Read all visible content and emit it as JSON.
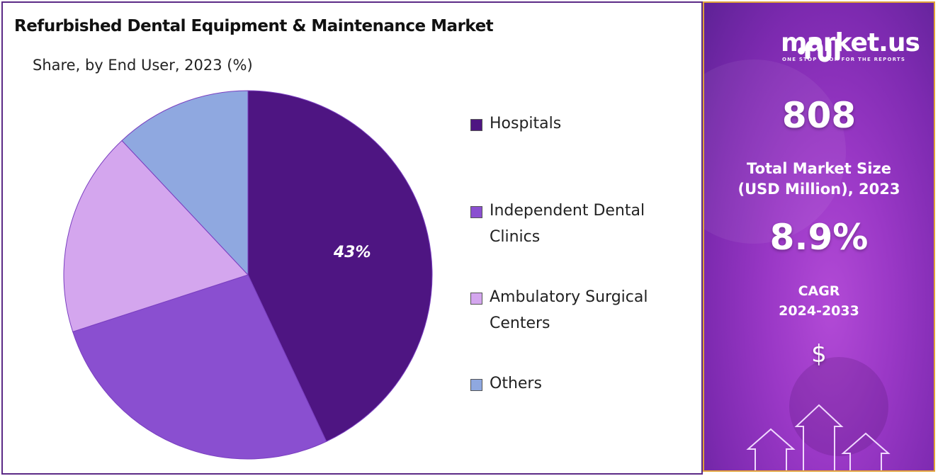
{
  "header": {
    "title": "Refurbished Dental Equipment & Maintenance Market",
    "subtitle": "Share, by End User, 2023 (%)"
  },
  "chart_data": {
    "type": "pie",
    "title": "Refurbished Dental Equipment & Maintenance Market",
    "subtitle": "Share, by End User, 2023 (%)",
    "categories": [
      "Hospitals",
      "Independent Dental Clinics",
      "Ambulatory Surgical Centers",
      "Others"
    ],
    "values": [
      43,
      27,
      18,
      12
    ],
    "colors": [
      "#4e1582",
      "#8a4fd0",
      "#d4a6ee",
      "#8fa8e0"
    ],
    "data_labels": [
      "43%",
      "",
      "",
      ""
    ],
    "legend_placement": "right",
    "start_angle": "top, clockwise"
  },
  "legend": {
    "items": [
      {
        "label": "Hospitals",
        "color": "#4e1582"
      },
      {
        "label": "Independent Dental Clinics",
        "color": "#8a4fd0"
      },
      {
        "label": "Ambulatory Surgical Centers",
        "color": "#d4a6ee"
      },
      {
        "label": "Others",
        "color": "#8fa8e0"
      }
    ]
  },
  "sidebar": {
    "logo_text": "market.us",
    "logo_tagline": "ONE STOP SHOP FOR THE REPORTS",
    "market_size": "808",
    "market_size_label_1": "Total Market Size",
    "market_size_label_2": "(USD Million), 2023",
    "cagr": "8.9%",
    "cagr_label": "CAGR",
    "cagr_period": "2024-2033",
    "currency_symbol": "$"
  }
}
